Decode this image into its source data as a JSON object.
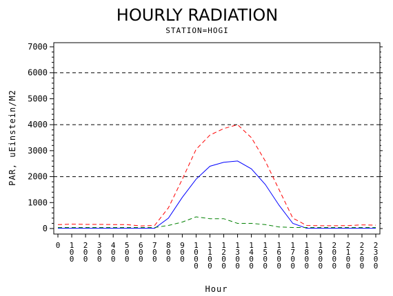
{
  "chart_data": {
    "type": "line",
    "title": "HOURLY RADIATION",
    "subtitle": "STATION=HOGI",
    "xlabel": "Hour",
    "ylabel": "PAR, uEinstein/M2",
    "x": [
      0,
      100,
      200,
      300,
      400,
      500,
      600,
      700,
      800,
      900,
      1000,
      1100,
      1200,
      1300,
      1400,
      1500,
      1600,
      1700,
      1800,
      1900,
      2000,
      2100,
      2200,
      2300
    ],
    "x_tick_labels": [
      "0",
      "100",
      "200",
      "300",
      "400",
      "500",
      "600",
      "700",
      "800",
      "900",
      "1000",
      "1100",
      "1200",
      "1300",
      "1400",
      "1500",
      "1600",
      "1700",
      "1800",
      "1900",
      "2000",
      "2100",
      "2200",
      "2300"
    ],
    "y_ticks": [
      0,
      1000,
      2000,
      3000,
      4000,
      5000,
      6000,
      7000
    ],
    "ylim": [
      0,
      7000
    ],
    "xlim": [
      0,
      2300
    ],
    "grid_lines_y": [
      2000,
      4000,
      6000
    ],
    "series": [
      {
        "color": "#ff0000",
        "dash": "dashed",
        "values": [
          150,
          170,
          160,
          160,
          155,
          150,
          100,
          120,
          800,
          1900,
          3050,
          3600,
          3850,
          4000,
          3500,
          2600,
          1500,
          400,
          120,
          110,
          110,
          115,
          140,
          130
        ]
      },
      {
        "color": "#0000ff",
        "dash": "solid",
        "values": [
          10,
          10,
          10,
          10,
          10,
          10,
          10,
          10,
          400,
          1200,
          1900,
          2400,
          2550,
          2600,
          2300,
          1700,
          900,
          200,
          10,
          10,
          10,
          10,
          10,
          10
        ]
      },
      {
        "color": "#008000",
        "dash": "dashed",
        "values": [
          40,
          40,
          40,
          40,
          40,
          40,
          40,
          40,
          120,
          250,
          450,
          380,
          380,
          200,
          200,
          150,
          60,
          40,
          40,
          40,
          40,
          40,
          40,
          40
        ]
      }
    ]
  }
}
